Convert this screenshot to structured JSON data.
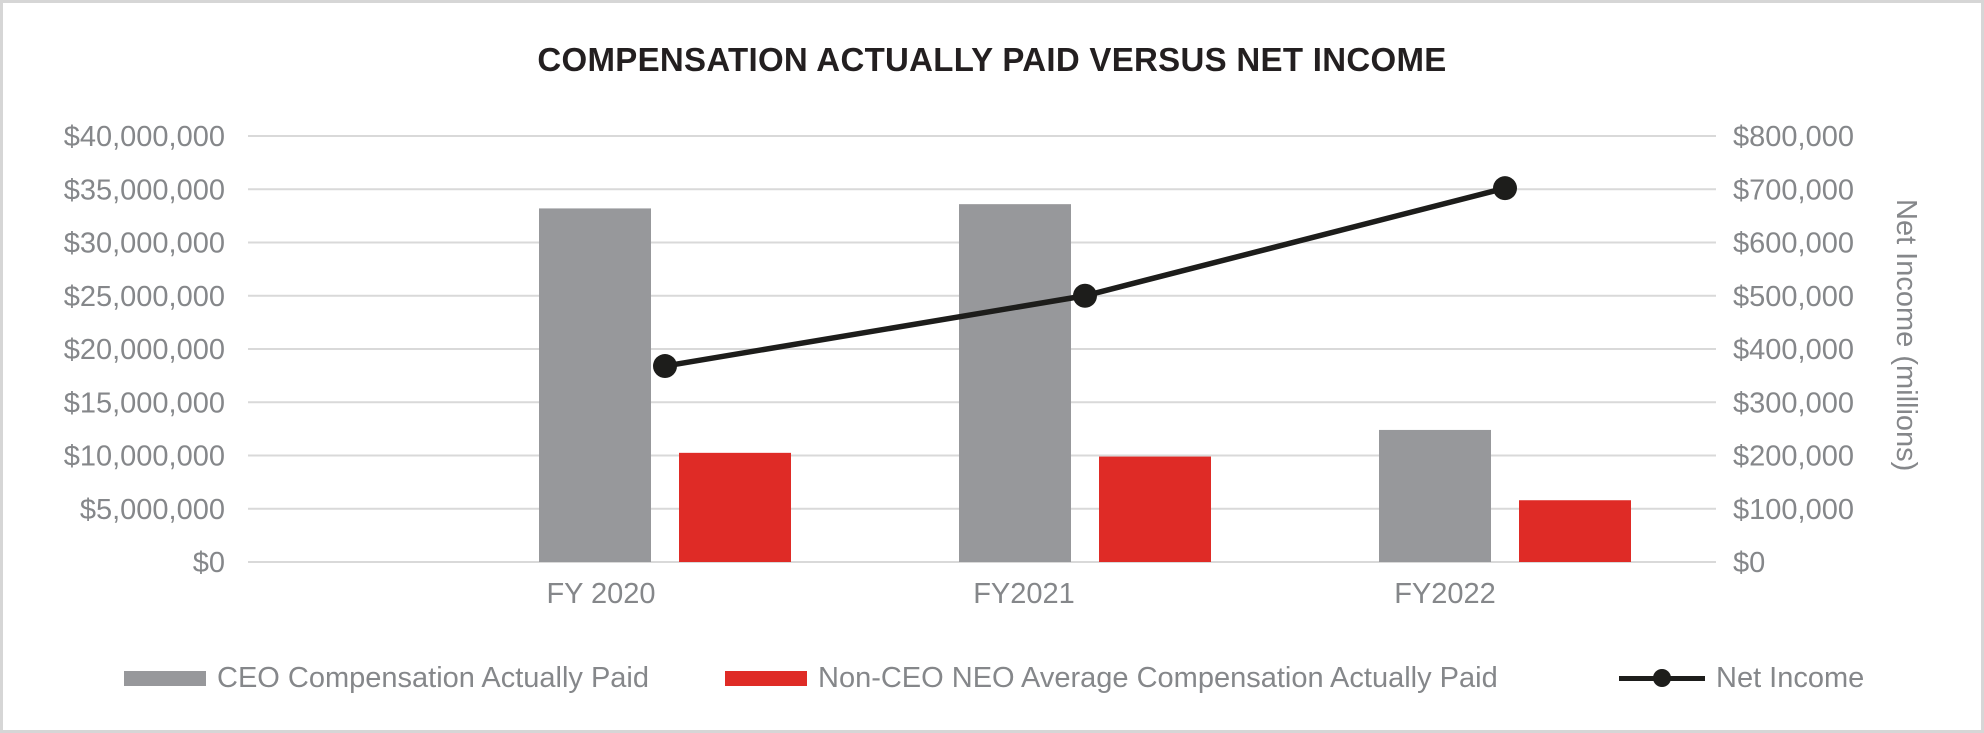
{
  "title": "COMPENSATION ACTUALLY PAID VERSUS NET INCOME",
  "colors": {
    "bar_gray": "#97989b",
    "bar_red": "#df2b26",
    "line_black": "#1d1d1b",
    "axis_text": "#85878a",
    "gridline": "#d9d9d9",
    "title_text": "#231f20",
    "border": "#d6d6d6"
  },
  "chart_data": {
    "type": "combo-bar-line",
    "title": "COMPENSATION ACTUALLY PAID VERSUS NET INCOME",
    "categories": [
      "FY 2020",
      "FY2021",
      "FY2022"
    ],
    "series": [
      {
        "name": "CEO Compensation Actually Paid",
        "type": "bar",
        "axis": "left",
        "color": "#97989b",
        "values": [
          33200000,
          33600000,
          12400000
        ]
      },
      {
        "name": "Non-CEO NEO Average Compensation Actually Paid",
        "type": "bar",
        "axis": "left",
        "color": "#df2b26",
        "values": [
          10250000,
          9900000,
          5800000
        ]
      },
      {
        "name": "Net Income",
        "type": "line",
        "axis": "right",
        "color": "#1d1d1b",
        "values": [
          368000,
          500000,
          702000
        ]
      }
    ],
    "left_axis": {
      "min": 0,
      "max": 40000000,
      "ticks": [
        "$40,000,000",
        "$35,000,000",
        "$30,000,000",
        "$25,000,000",
        "$20,000,000",
        "$15,000,000",
        "$10,000,000",
        "$5,000,000",
        "$0"
      ]
    },
    "right_axis": {
      "title": "Net Income (millions)",
      "min": 0,
      "max": 800000,
      "ticks": [
        "$800,000",
        "$700,000",
        "$600,000",
        "$500,000",
        "$400,000",
        "$300,000",
        "$200,000",
        "$100,000",
        "$0"
      ]
    },
    "grid": true,
    "legend_position": "bottom"
  },
  "legend": {
    "items": [
      {
        "label": "CEO Compensation Actually Paid"
      },
      {
        "label": "Non-CEO NEO Average Compensation Actually Paid"
      },
      {
        "label": "Net Income"
      }
    ]
  }
}
